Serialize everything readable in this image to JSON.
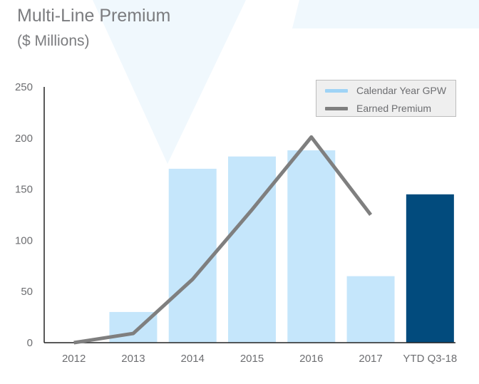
{
  "header": {
    "title": "Multi-Line Premium",
    "subtitle": "($ Millions)"
  },
  "colors": {
    "gpw": "#c5e6fb",
    "gpw_highlight": "#024b7d",
    "earned": "#7f7f7f",
    "axis": "#222222",
    "tick_text": "#6d6e71",
    "background_watermark": "#eef7fd"
  },
  "legend": {
    "placement": "top-right",
    "items": [
      {
        "label": "Calendar Year GPW",
        "color": "#9fd3f6"
      },
      {
        "label": "Earned Premium",
        "color": "#7f7f7f"
      }
    ]
  },
  "chart_data": {
    "type": "bar",
    "title": "Multi-Line Premium",
    "subtitle": "($ Millions)",
    "xlabel": "",
    "ylabel": "",
    "categories": [
      "2012",
      "2013",
      "2014",
      "2015",
      "2016",
      "2017",
      "YTD Q3-18"
    ],
    "ylim": [
      0,
      250
    ],
    "yticks": [
      0,
      50,
      100,
      150,
      200,
      250
    ],
    "grid": false,
    "series": [
      {
        "name": "Calendar Year GPW",
        "type": "bar",
        "values": [
          0,
          30,
          170,
          182,
          188,
          65,
          145
        ],
        "highlight_index": 6
      },
      {
        "name": "Earned Premium",
        "type": "line",
        "values": [
          0,
          9,
          62,
          130,
          201,
          125,
          null
        ]
      }
    ]
  }
}
